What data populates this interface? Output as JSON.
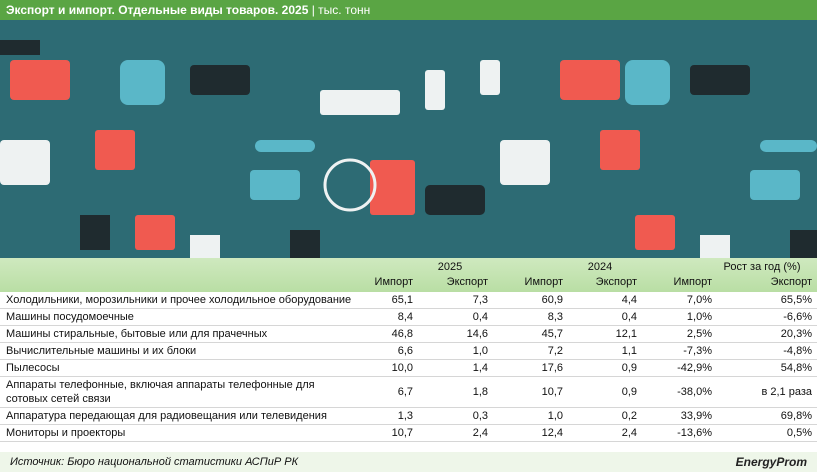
{
  "header": {
    "title": "Экспорт и импорт. Отдельные виды товаров. 2025",
    "unit": "| тыс. тонн"
  },
  "table": {
    "groups": [
      "2025",
      "2024",
      "Рост за год (%)"
    ],
    "subheaders": [
      "Импорт",
      "Экспорт",
      "Импорт",
      "Экспорт",
      "Импорт",
      "Экспорт"
    ],
    "rows": [
      [
        "Холодильники, морозильники и прочее холодильное оборудование",
        "65,1",
        "7,3",
        "60,9",
        "4,4",
        "7,0%",
        "65,5%"
      ],
      [
        "Машины посудомоечные",
        "8,4",
        "0,4",
        "8,3",
        "0,4",
        "1,0%",
        "-6,6%"
      ],
      [
        "Машины стиральные, бытовые или для прачечных",
        "46,8",
        "14,6",
        "45,7",
        "12,1",
        "2,5%",
        "20,3%"
      ],
      [
        "Вычислительные машины и их блоки",
        "6,6",
        "1,0",
        "7,2",
        "1,1",
        "-7,3%",
        "-4,8%"
      ],
      [
        "Пылесосы",
        "10,0",
        "1,4",
        "17,6",
        "0,9",
        "-42,9%",
        "54,8%"
      ],
      [
        "Аппараты телефонные, включая аппараты телефонные для сотовых сетей связи",
        "6,7",
        "1,8",
        "10,7",
        "0,9",
        "-38,0%",
        "в 2,1 раза"
      ],
      [
        "Аппаратура передающая для радиовещания или телевидения",
        "1,3",
        "0,3",
        "1,0",
        "0,2",
        "33,9%",
        "69,8%"
      ],
      [
        "Мониторы и проекторы",
        "10,7",
        "2,4",
        "12,4",
        "2,4",
        "-13,6%",
        "0,5%"
      ]
    ]
  },
  "source": "Источник: Бюро национальной статистики АСПиР РК",
  "logo": "EnergyProm"
}
